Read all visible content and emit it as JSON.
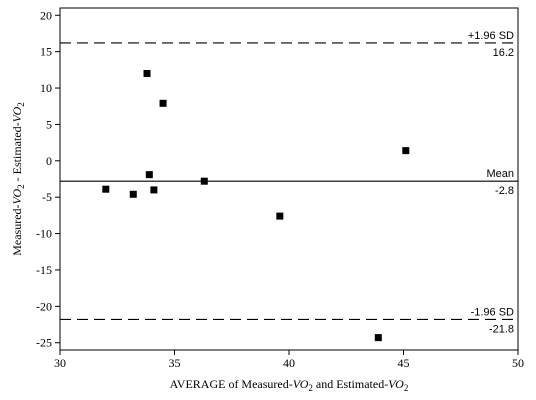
{
  "chart_data": {
    "type": "scatter",
    "title": "",
    "xlabel": {
      "parts": [
        {
          "text": "AVERAGE of Measured-",
          "italic": false,
          "sub": false
        },
        {
          "text": "VO",
          "italic": true,
          "sub": false
        },
        {
          "text": "2",
          "italic": false,
          "sub": true
        },
        {
          "text": " and Estimated-",
          "italic": false,
          "sub": false
        },
        {
          "text": "VO",
          "italic": true,
          "sub": false
        },
        {
          "text": "2",
          "italic": false,
          "sub": true
        }
      ]
    },
    "ylabel": {
      "parts": [
        {
          "text": "Measured-",
          "italic": false,
          "sub": false
        },
        {
          "text": "VO",
          "italic": true,
          "sub": false
        },
        {
          "text": "2",
          "italic": false,
          "sub": true
        },
        {
          "text": " - Estimated-",
          "italic": false,
          "sub": false
        },
        {
          "text": "VO",
          "italic": true,
          "sub": false
        },
        {
          "text": "2",
          "italic": false,
          "sub": true
        }
      ]
    },
    "xlim": [
      30,
      50
    ],
    "ylim": [
      -26,
      21
    ],
    "xticks": [
      30,
      35,
      40,
      45,
      50
    ],
    "yticks": [
      -25,
      -20,
      -15,
      -10,
      -5,
      0,
      5,
      10,
      15,
      20
    ],
    "grid": false,
    "points": [
      {
        "x": 32.0,
        "y": -3.9
      },
      {
        "x": 33.2,
        "y": -4.6
      },
      {
        "x": 33.8,
        "y": 12.0
      },
      {
        "x": 33.9,
        "y": -1.9
      },
      {
        "x": 34.1,
        "y": -4.0
      },
      {
        "x": 34.5,
        "y": 7.9
      },
      {
        "x": 36.3,
        "y": -2.8
      },
      {
        "x": 39.6,
        "y": -7.6
      },
      {
        "x": 43.9,
        "y": -24.3
      },
      {
        "x": 45.1,
        "y": 1.4
      }
    ],
    "reference_lines": [
      {
        "name": "upper",
        "y": 16.2,
        "label": "+1.96 SD",
        "value_label": "16.2",
        "style": "dashed"
      },
      {
        "name": "mean",
        "y": -2.8,
        "label": "Mean",
        "value_label": "-2.8",
        "style": "solid"
      },
      {
        "name": "lower",
        "y": -21.8,
        "label": "-1.96 SD",
        "value_label": "-21.8",
        "style": "dashed"
      }
    ]
  }
}
